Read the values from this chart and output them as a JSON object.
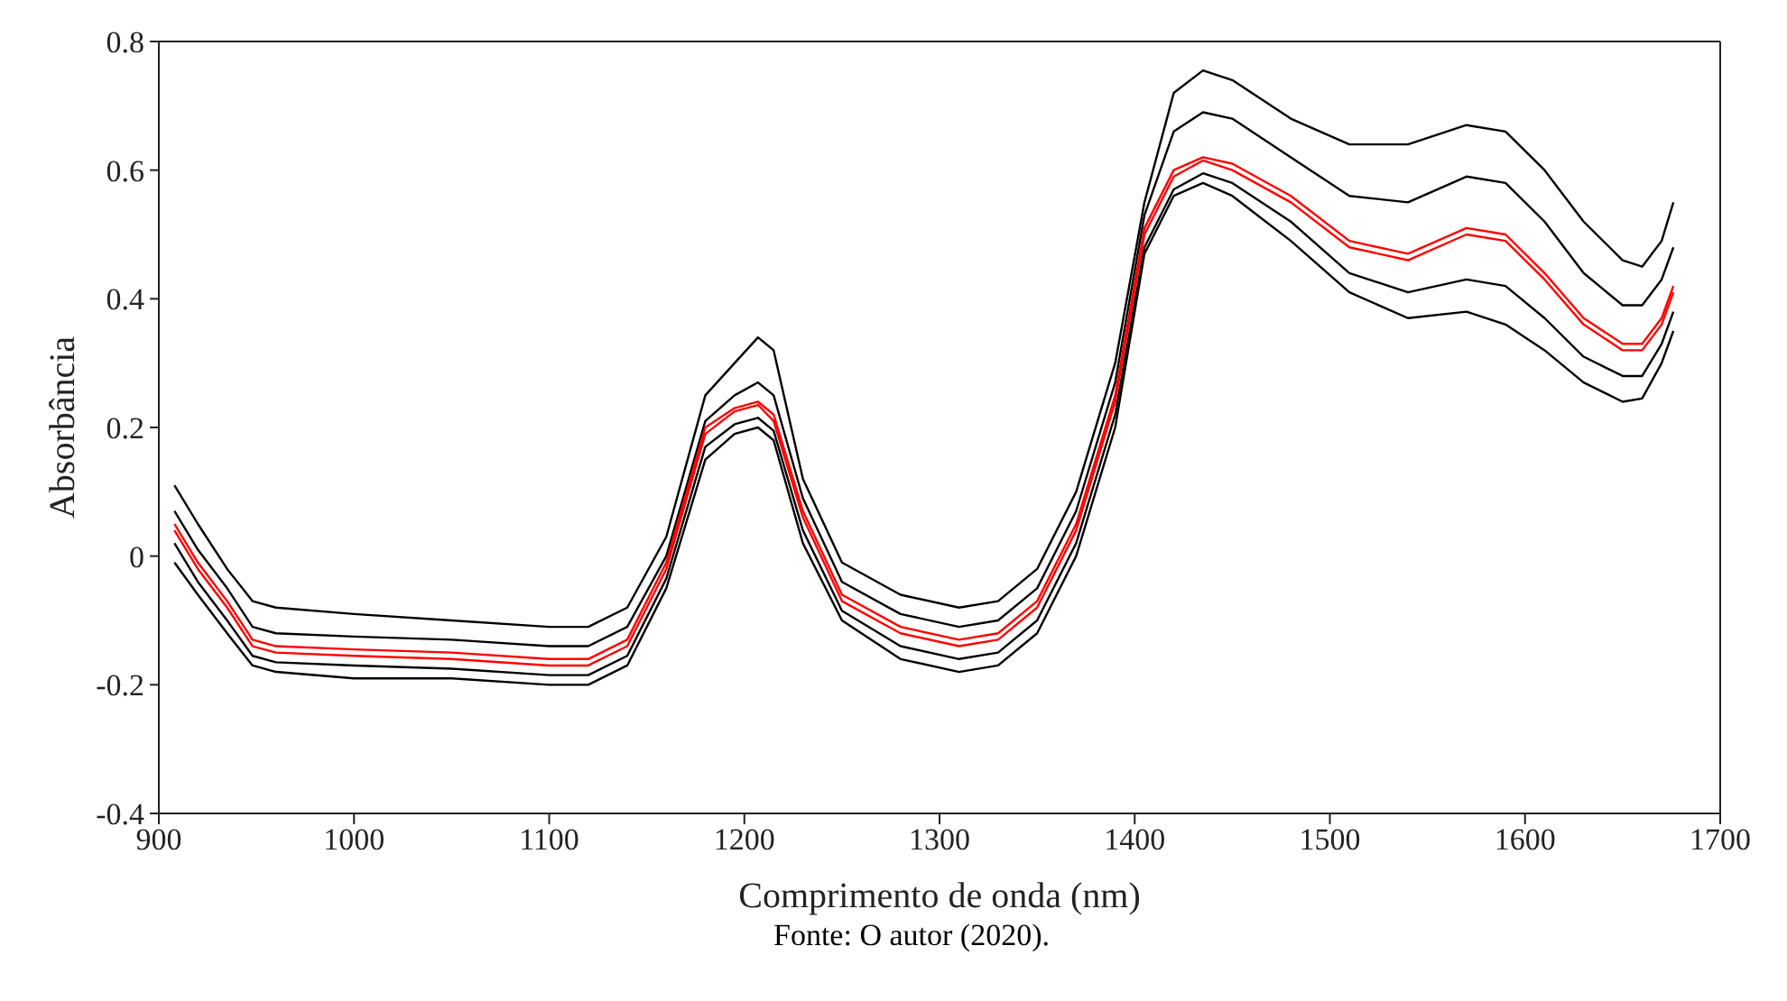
{
  "chart_data": {
    "type": "line",
    "xlabel": "Comprimento de onda (nm)",
    "ylabel": "Absorbância",
    "annotations": [
      "Fonte: O autor (2020)."
    ],
    "x": [
      908,
      920,
      935,
      948,
      960,
      1000,
      1050,
      1100,
      1120,
      1140,
      1160,
      1180,
      1195,
      1207,
      1215,
      1230,
      1250,
      1280,
      1310,
      1330,
      1350,
      1370,
      1390,
      1405,
      1420,
      1435,
      1450,
      1480,
      1510,
      1540,
      1570,
      1590,
      1610,
      1630,
      1650,
      1660,
      1670,
      1676
    ],
    "series": [
      {
        "color": "#000000",
        "values": [
          0.11,
          0.05,
          -0.02,
          -0.07,
          -0.08,
          -0.09,
          -0.1,
          -0.11,
          -0.11,
          -0.08,
          0.03,
          0.25,
          0.3,
          0.34,
          0.32,
          0.12,
          -0.01,
          -0.06,
          -0.08,
          -0.07,
          -0.02,
          0.1,
          0.3,
          0.55,
          0.72,
          0.755,
          0.74,
          0.68,
          0.64,
          0.64,
          0.67,
          0.66,
          0.6,
          0.52,
          0.46,
          0.45,
          0.49,
          0.55
        ]
      },
      {
        "color": "#000000",
        "values": [
          0.07,
          0.01,
          -0.05,
          -0.11,
          -0.12,
          -0.125,
          -0.13,
          -0.14,
          -0.14,
          -0.11,
          0.0,
          0.21,
          0.25,
          0.27,
          0.25,
          0.09,
          -0.04,
          -0.09,
          -0.11,
          -0.1,
          -0.05,
          0.07,
          0.27,
          0.53,
          0.66,
          0.69,
          0.68,
          0.62,
          0.56,
          0.55,
          0.59,
          0.58,
          0.52,
          0.44,
          0.39,
          0.39,
          0.43,
          0.48
        ]
      },
      {
        "color": "#000000",
        "values": [
          0.02,
          -0.04,
          -0.1,
          -0.155,
          -0.165,
          -0.17,
          -0.175,
          -0.185,
          -0.185,
          -0.155,
          -0.035,
          0.17,
          0.205,
          0.215,
          0.195,
          0.04,
          -0.085,
          -0.14,
          -0.16,
          -0.15,
          -0.1,
          0.02,
          0.22,
          0.48,
          0.57,
          0.595,
          0.58,
          0.52,
          0.44,
          0.41,
          0.43,
          0.42,
          0.37,
          0.31,
          0.28,
          0.28,
          0.33,
          0.38
        ]
      },
      {
        "color": "#000000",
        "values": [
          -0.01,
          -0.06,
          -0.12,
          -0.17,
          -0.18,
          -0.19,
          -0.19,
          -0.2,
          -0.2,
          -0.17,
          -0.05,
          0.15,
          0.19,
          0.2,
          0.18,
          0.02,
          -0.1,
          -0.16,
          -0.18,
          -0.17,
          -0.12,
          0.0,
          0.2,
          0.47,
          0.56,
          0.58,
          0.56,
          0.49,
          0.41,
          0.37,
          0.38,
          0.36,
          0.32,
          0.27,
          0.24,
          0.245,
          0.3,
          0.35
        ]
      },
      {
        "color": "#ff0000",
        "values": [
          0.04,
          -0.02,
          -0.08,
          -0.14,
          -0.15,
          -0.155,
          -0.16,
          -0.17,
          -0.17,
          -0.14,
          -0.02,
          0.19,
          0.225,
          0.235,
          0.21,
          0.06,
          -0.07,
          -0.12,
          -0.14,
          -0.13,
          -0.08,
          0.04,
          0.24,
          0.5,
          0.59,
          0.615,
          0.6,
          0.55,
          0.48,
          0.46,
          0.5,
          0.49,
          0.43,
          0.36,
          0.32,
          0.32,
          0.36,
          0.41
        ]
      },
      {
        "color": "#ff0000",
        "values": [
          0.05,
          -0.01,
          -0.07,
          -0.13,
          -0.14,
          -0.145,
          -0.15,
          -0.16,
          -0.16,
          -0.13,
          -0.01,
          0.2,
          0.23,
          0.24,
          0.22,
          0.07,
          -0.06,
          -0.11,
          -0.13,
          -0.12,
          -0.07,
          0.05,
          0.25,
          0.51,
          0.6,
          0.62,
          0.61,
          0.56,
          0.49,
          0.47,
          0.51,
          0.5,
          0.44,
          0.37,
          0.33,
          0.33,
          0.37,
          0.42
        ]
      }
    ],
    "xlim": [
      900,
      1700
    ],
    "xticks": [
      900,
      1000,
      1100,
      1200,
      1300,
      1400,
      1500,
      1600,
      1700
    ],
    "ylim": [
      -0.4,
      0.8
    ],
    "yticks": [
      -0.4,
      -0.2,
      0,
      0.2,
      0.4,
      0.6,
      0.8
    ],
    "grid": false,
    "legend": false,
    "marker": "none",
    "line_style": "solid"
  }
}
